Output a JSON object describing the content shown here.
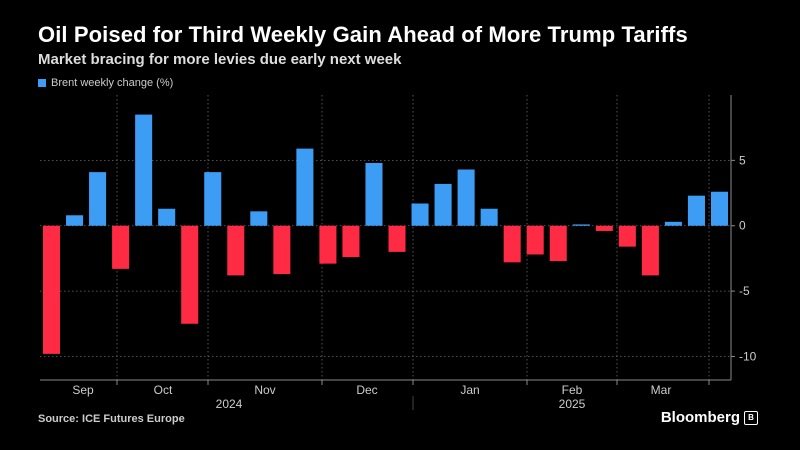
{
  "title": "Oil Poised for Third Weekly Gain Ahead of More Trump Tariffs",
  "subtitle": "Market bracing for more levies due early next week",
  "source": "Source: ICE Futures Europe",
  "brand": "Bloomberg",
  "colors": {
    "positive": "#3d9df5",
    "negative": "#ff2a43",
    "grid": "#6a6a6a",
    "axis": "#8a8a8a"
  },
  "chart_data": {
    "type": "bar",
    "series": [
      {
        "name": "Brent weekly change (%)",
        "values": [
          -9.8,
          0.8,
          4.1,
          -3.3,
          8.5,
          1.3,
          -7.5,
          4.1,
          -3.8,
          1.1,
          -3.7,
          5.9,
          -2.9,
          -2.4,
          4.8,
          -2.0,
          1.7,
          3.2,
          4.3,
          1.3,
          -2.8,
          -2.2,
          -2.7,
          0.1,
          -0.4,
          -1.6,
          -3.8,
          0.3,
          2.3,
          2.6
        ]
      }
    ],
    "ylim": [
      -11.8,
      10
    ],
    "yticks": [
      5,
      0,
      -5,
      -10
    ],
    "grid": true,
    "legend": "top-left",
    "month_labels": [
      "Sep",
      "Oct",
      "Nov",
      "Dec",
      "Jan",
      "Feb",
      "Mar"
    ],
    "year_labels": [
      "2024",
      "2025"
    ]
  }
}
